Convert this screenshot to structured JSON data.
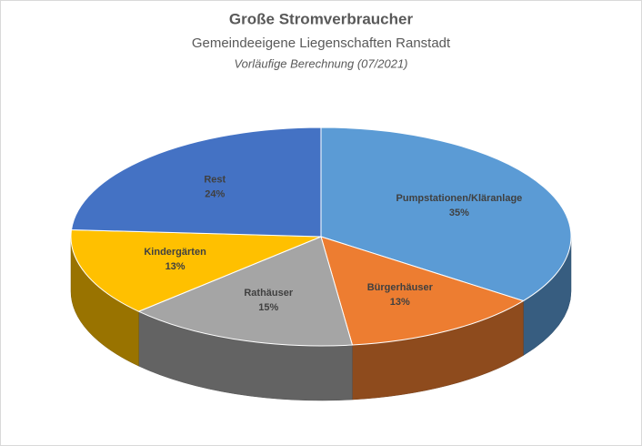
{
  "chart_data": {
    "type": "pie3d",
    "title": "Große Stromverbraucher",
    "subtitle": "Gemeindeeigene Liegenschaften Ranstadt",
    "annotation": "Vorläufige Berechnung (07/2021)",
    "categories": [
      "Pumpstationen/Kläranlage",
      "Bürgerhäuser",
      "Rathäuser",
      "Kindergärten",
      "Rest"
    ],
    "values": [
      35,
      13,
      15,
      13,
      24
    ],
    "value_labels": [
      "35%",
      "13%",
      "15%",
      "13%",
      "24%"
    ],
    "colors": [
      "#5b9bd5",
      "#ed7d31",
      "#a5a5a5",
      "#ffc000",
      "#4472c4"
    ]
  }
}
